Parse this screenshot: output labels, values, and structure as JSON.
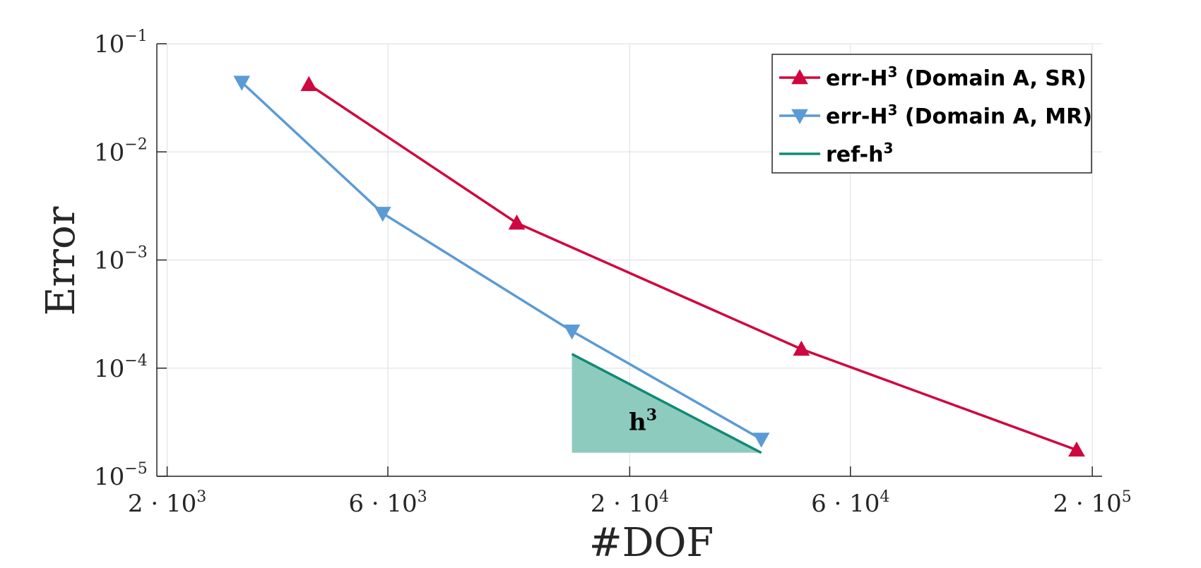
{
  "chart_data": {
    "type": "line",
    "xscale": "log",
    "yscale": "log",
    "xlabel": "#DOF",
    "ylabel": "Error",
    "xlim": [
      1900,
      210000
    ],
    "ylim": [
      1e-05,
      0.1
    ],
    "grid": true,
    "x_ticks": [
      {
        "value": 2000,
        "coef": "2",
        "exp": "3"
      },
      {
        "value": 6000,
        "coef": "6",
        "exp": "3"
      },
      {
        "value": 20000,
        "coef": "2",
        "exp": "4"
      },
      {
        "value": 60000,
        "coef": "6",
        "exp": "4"
      },
      {
        "value": 200000,
        "coef": "2",
        "exp": "5"
      }
    ],
    "y_ticks": [
      {
        "value": 1e-05,
        "exp": "−5"
      },
      {
        "value": 0.0001,
        "exp": "−4"
      },
      {
        "value": 0.001,
        "exp": "−3"
      },
      {
        "value": 0.01,
        "exp": "−2"
      },
      {
        "value": 0.1,
        "exp": "−1"
      }
    ],
    "series": [
      {
        "name": "err-H",
        "name_sup": "3",
        "name_suffix": " (Domain A, SR)",
        "color": "#d0063f",
        "marker": "triangle-up",
        "x": [
          4050,
          11400,
          47000,
          185000
        ],
        "y": [
          0.042,
          0.0022,
          0.00015,
          1.75e-05
        ]
      },
      {
        "name": "err-H",
        "name_sup": "3",
        "name_suffix": " (Domain A, MR)",
        "color": "#5b9bd5",
        "marker": "triangle-down",
        "x": [
          2900,
          5850,
          15000,
          38500
        ],
        "y": [
          0.044,
          0.0027,
          0.00022,
          2.2e-05
        ]
      }
    ],
    "reference": {
      "name": "ref-h",
      "name_sup": "3",
      "color": "#108a74",
      "fill": "#8ecbbf",
      "x": [
        15000,
        38500
      ],
      "y": [
        0.000135,
        1.65e-05
      ],
      "label": "h",
      "label_sup": "3"
    },
    "legend_position": "top-right"
  }
}
